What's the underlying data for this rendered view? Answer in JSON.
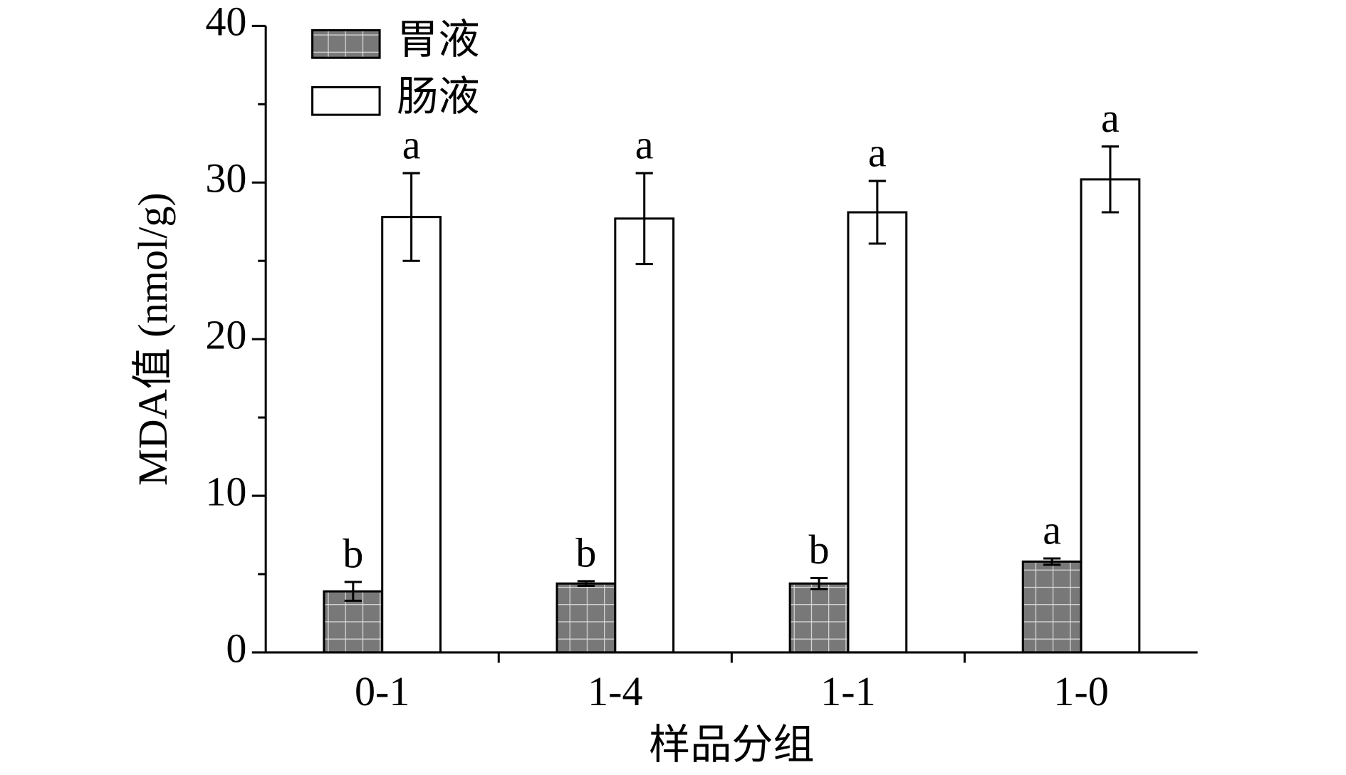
{
  "chart_data": {
    "type": "bar",
    "ylabel": "MDA值 (nmol/g)",
    "xlabel": "样品分组",
    "categories": [
      "0-1",
      "1-4",
      "1-1",
      "1-0"
    ],
    "series": [
      {
        "name": "胃液",
        "color": "#787878",
        "values": [
          3.9,
          4.4,
          4.4,
          5.8
        ],
        "errors": [
          0.6,
          0.15,
          0.35,
          0.2
        ],
        "significance": [
          "b",
          "b",
          "b",
          "a"
        ]
      },
      {
        "name": "肠液",
        "color": "#ffffff",
        "values": [
          27.8,
          27.7,
          28.1,
          30.2
        ],
        "errors": [
          2.8,
          2.9,
          2.0,
          2.1
        ],
        "significance": [
          "a",
          "a",
          "a",
          "a"
        ]
      }
    ],
    "ylim": [
      0,
      40
    ],
    "yticks": [
      0,
      10,
      20,
      30,
      40
    ],
    "minor_yticks": [
      5,
      15,
      25,
      35
    ],
    "legend": "upper left"
  }
}
